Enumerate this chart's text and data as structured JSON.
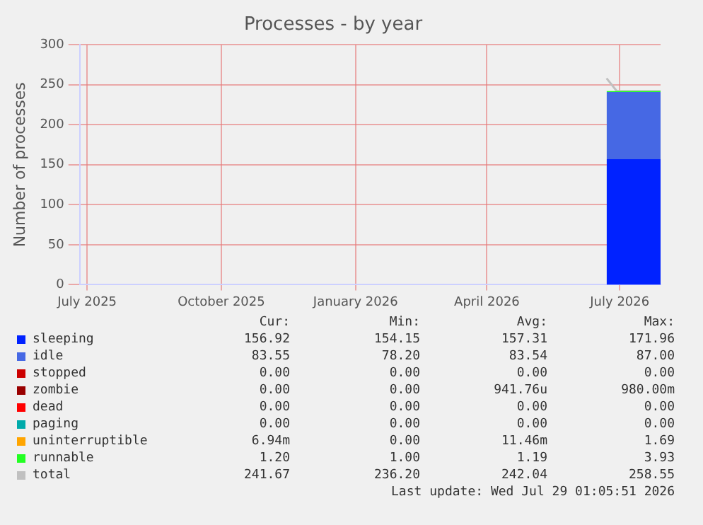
{
  "chart_data": {
    "type": "area",
    "title": "Processes - by year",
    "ylabel": "Number of processes",
    "stacked": true,
    "grid": true,
    "legend": "bottom",
    "x": [
      "2026-06-22",
      "2026-06-29",
      "2026-07-06",
      "2026-07-13",
      "2026-07-20",
      "2026-07-29"
    ],
    "xlim": [
      "2025-06-26",
      "2026-07-29"
    ],
    "xticks": [
      {
        "value": "2025-07-01",
        "label": "July 2025"
      },
      {
        "value": "2025-10-01",
        "label": "October 2025"
      },
      {
        "value": "2026-01-01",
        "label": "January 2026"
      },
      {
        "value": "2026-04-01",
        "label": "April 2026"
      },
      {
        "value": "2026-07-01",
        "label": "July 2026"
      }
    ],
    "ylim": [
      0,
      300
    ],
    "yticks": [
      0,
      50,
      100,
      150,
      200,
      250,
      300
    ],
    "series": [
      {
        "name": "sleeping",
        "color": "#0022ff",
        "values": [
          157,
          157,
          157,
          157,
          157,
          157
        ]
      },
      {
        "name": "idle",
        "color": "#4668e4",
        "values": [
          84,
          84,
          84,
          84,
          84,
          84
        ]
      },
      {
        "name": "stopped",
        "color": "#cc0000",
        "values": [
          null,
          null,
          null,
          null,
          null,
          null
        ]
      },
      {
        "name": "zombie",
        "color": "#990000",
        "values": [
          null,
          null,
          null,
          null,
          null,
          null
        ]
      },
      {
        "name": "dead",
        "color": "#ff0000",
        "values": [
          null,
          null,
          null,
          null,
          null,
          null
        ]
      },
      {
        "name": "paging",
        "color": "#00aaaa",
        "values": [
          null,
          null,
          null,
          null,
          null,
          null
        ]
      },
      {
        "name": "uninterruptible",
        "color": "#ffa500",
        "values": [
          null,
          null,
          null,
          null,
          null,
          null
        ]
      },
      {
        "name": "runnable",
        "color": "#22ff22",
        "values": [
          1,
          1,
          1,
          1,
          1,
          1
        ]
      },
      {
        "name": "total",
        "type": "line",
        "color": "#c0c0c0",
        "values": [
          258,
          242,
          242,
          242,
          242,
          242
        ]
      }
    ],
    "annotations": [
      "Cur:",
      "Min:",
      "Avg:",
      "Max:",
      "156.92",
      "154.15",
      "157.31",
      "171.96",
      "83.55",
      "78.20",
      "83.54",
      "87.00",
      "0.00",
      "0.00",
      "0.00",
      "0.00",
      "0.00",
      "0.00",
      "941.76u",
      "980.00m",
      "0.00",
      "0.00",
      "0.00",
      "0.00",
      "0.00",
      "0.00",
      "0.00",
      "0.00",
      "6.94m",
      "0.00",
      "11.46m",
      "1.69",
      "1.20",
      "1.00",
      "1.19",
      "3.93",
      "241.67",
      "236.20",
      "242.04",
      "258.55",
      "Last update: Wed Jul 29 01:05:51 2026"
    ]
  }
}
